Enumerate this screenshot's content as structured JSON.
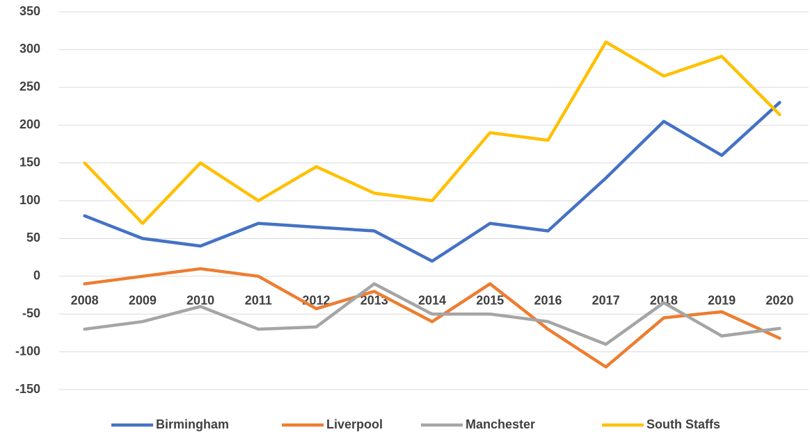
{
  "chart_data": {
    "type": "line",
    "categories": [
      "2008",
      "2009",
      "2010",
      "2011",
      "2012",
      "2013",
      "2014",
      "2015",
      "2016",
      "2017",
      "2018",
      "2019",
      "2020"
    ],
    "series": [
      {
        "name": "Birmingham",
        "color": "#4472c4",
        "values": [
          80,
          50,
          40,
          70,
          65,
          60,
          20,
          70,
          60,
          130,
          205,
          160,
          230
        ]
      },
      {
        "name": "Liverpool",
        "color": "#ed7d31",
        "values": [
          -10,
          0,
          10,
          0,
          -43,
          -20,
          -60,
          -10,
          -70,
          -120,
          -55,
          -47,
          -82
        ]
      },
      {
        "name": "Manchester",
        "color": "#a5a5a5",
        "values": [
          -70,
          -60,
          -40,
          -70,
          -67,
          -10,
          -50,
          -50,
          -60,
          -90,
          -35,
          -79,
          -69
        ]
      },
      {
        "name": "South Staffs",
        "color": "#ffc000",
        "values": [
          150,
          70,
          150,
          100,
          145,
          110,
          100,
          190,
          180,
          310,
          265,
          291,
          214
        ]
      }
    ],
    "ylim": [
      -150,
      350
    ],
    "yticks": [
      -150,
      -100,
      -50,
      0,
      50,
      100,
      150,
      200,
      250,
      300,
      350
    ],
    "grid": true,
    "legend": "bottom"
  }
}
